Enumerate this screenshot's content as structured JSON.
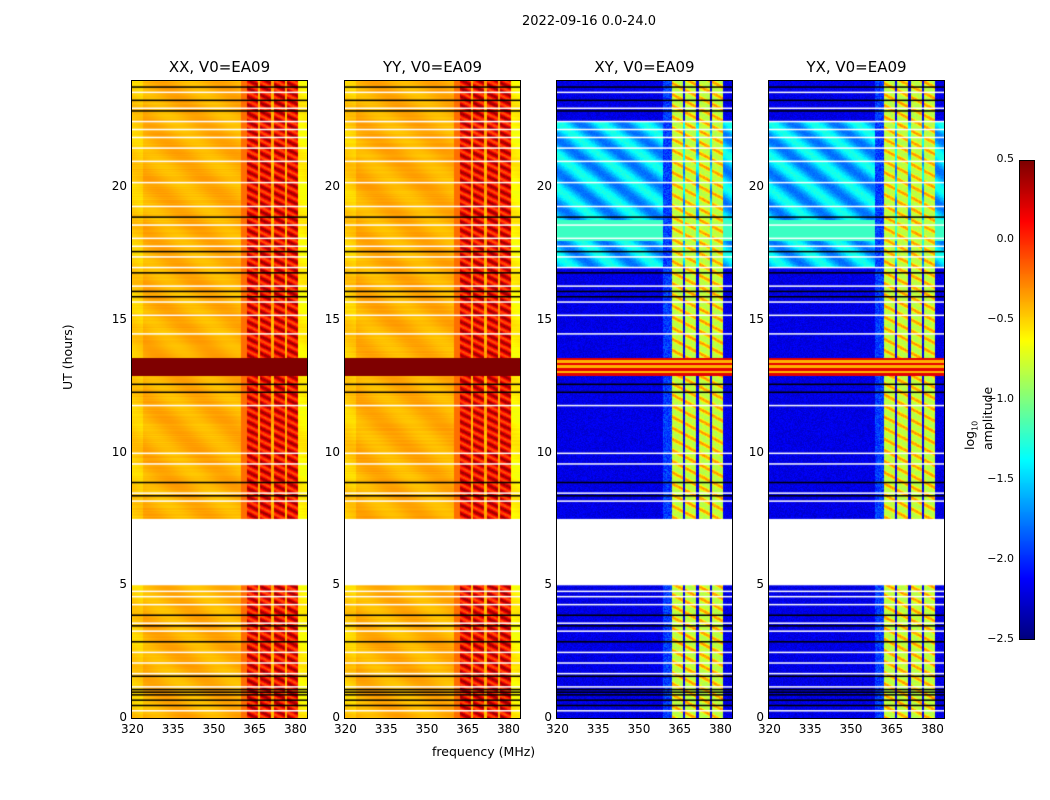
{
  "chart_data": {
    "type": "heatmap",
    "suptitle": "2022-09-16 0.0-24.0",
    "xlabel": "frequency (MHz)",
    "ylabel": "UT (hours)",
    "xlim": [
      320,
      384.4
    ],
    "ylim": [
      0,
      24
    ],
    "xticks": [
      "320",
      "335",
      "350",
      "365",
      "380"
    ],
    "xtick_values": [
      320,
      335,
      350,
      365,
      380
    ],
    "yticks": [
      "0",
      "5",
      "10",
      "15",
      "20"
    ],
    "ytick_values": [
      0,
      5,
      10,
      15,
      20
    ],
    "panels": [
      {
        "title": "XX, V0=EA09",
        "kind": "auto"
      },
      {
        "title": "YY, V0=EA09",
        "kind": "auto"
      },
      {
        "title": "XY, V0=EA09",
        "kind": "cross"
      },
      {
        "title": "YX, V0=EA09",
        "kind": "cross"
      }
    ],
    "rfi_channels_mhz": [
      [
        362,
        366
      ],
      [
        367,
        371
      ],
      [
        372,
        376
      ],
      [
        377,
        381
      ]
    ],
    "flagged_gap_hours": [
      5.0,
      7.5
    ],
    "saturated_band_hours": [
      12.9,
      13.6
    ],
    "white_line_hours": [
      0.3,
      1.2,
      1.7,
      2.1,
      2.5,
      3.3,
      3.6,
      4.3,
      4.6,
      4.8,
      8.2,
      8.5,
      9.6,
      10.0,
      11.8,
      14.5,
      15.2,
      15.7,
      16.3,
      17.0,
      17.4,
      17.8,
      18.1,
      18.6,
      19.3,
      20.2,
      21.0,
      21.5,
      21.9,
      22.2,
      22.5,
      23.0,
      23.6
    ],
    "black_line_hours": [
      0.5,
      0.7,
      0.9,
      1.0,
      1.1,
      1.6,
      2.9,
      3.5,
      3.9,
      8.4,
      8.9,
      12.3,
      12.6,
      15.9,
      16.1,
      16.8,
      17.6,
      18.9,
      22.9,
      23.3,
      23.8
    ],
    "colorbar": {
      "label": "log10 amplitude",
      "label_base": "log",
      "label_sub": "10",
      "label_rest": " amplitude",
      "range": [
        -2.5,
        0.5
      ],
      "ticks": [
        "0.5",
        "0.0",
        "−0.5",
        "−1.0",
        "−1.5",
        "−2.0",
        "−2.5"
      ],
      "tick_values": [
        0.5,
        0.0,
        -0.5,
        -1.0,
        -1.5,
        -2.0,
        -2.5
      ],
      "colormap": "jet"
    }
  }
}
